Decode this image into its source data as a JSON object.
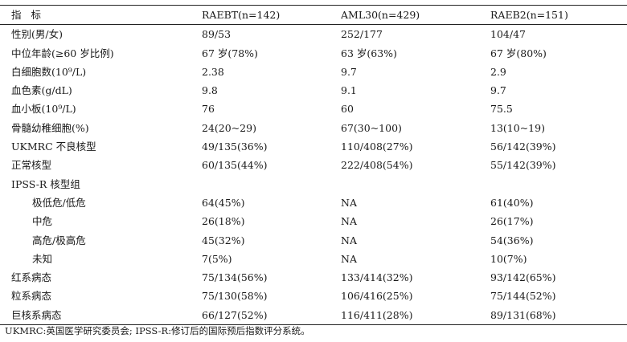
{
  "table": {
    "headers": [
      "指标",
      "RAEBT(n=142)",
      "AML30(n=429)",
      "RAEB2(n=151)"
    ],
    "rows": [
      {
        "cells": [
          "性别(男/女)",
          "89/53",
          "252/177",
          "104/47"
        ],
        "indent": false
      },
      {
        "cells": [
          "中位年龄(≥60 岁比例)",
          "67 岁(78%)",
          "63 岁(63%)",
          "67 岁(80%)"
        ],
        "indent": false
      },
      {
        "cells": [
          "白细胞数(10⁹/L)",
          "2.38",
          "9.7",
          "2.9"
        ],
        "indent": false
      },
      {
        "cells": [
          "血色素(g/dL)",
          "9.8",
          "9.1",
          "9.7"
        ],
        "indent": false
      },
      {
        "cells": [
          "血小板(10⁹/L)",
          "76",
          "60",
          "75.5"
        ],
        "indent": false
      },
      {
        "cells": [
          "骨髓幼稚细胞(%)",
          "24(20~29)",
          "67(30~100)",
          "13(10~19)"
        ],
        "indent": false
      },
      {
        "cells": [
          "UKMRC 不良核型",
          "49/135(36%)",
          "110/408(27%)",
          "56/142(39%)"
        ],
        "indent": false
      },
      {
        "cells": [
          "正常核型",
          "60/135(44%)",
          "222/408(54%)",
          "55/142(39%)"
        ],
        "indent": false
      },
      {
        "cells": [
          "IPSS-R 核型组",
          "",
          "",
          ""
        ],
        "indent": false
      },
      {
        "cells": [
          "极低危/低危",
          "64(45%)",
          "NA",
          "61(40%)"
        ],
        "indent": true
      },
      {
        "cells": [
          "中危",
          "26(18%)",
          "NA",
          "26(17%)"
        ],
        "indent": true
      },
      {
        "cells": [
          "高危/极高危",
          "45(32%)",
          "NA",
          "54(36%)"
        ],
        "indent": true
      },
      {
        "cells": [
          "未知",
          "7(5%)",
          "NA",
          "10(7%)"
        ],
        "indent": true
      },
      {
        "cells": [
          "红系病态",
          "75/134(56%)",
          "133/414(32%)",
          "93/142(65%)"
        ],
        "indent": false
      },
      {
        "cells": [
          "粒系病态",
          "75/130(58%)",
          "106/416(25%)",
          "75/144(52%)"
        ],
        "indent": false
      },
      {
        "cells": [
          "巨核系病态",
          "66/127(52%)",
          "116/411(28%)",
          "89/131(68%)"
        ],
        "indent": false
      }
    ]
  },
  "footnote": "UKMRC:英国医学研究委员会; IPSS-R:修订后的国际预后指数评分系统。"
}
